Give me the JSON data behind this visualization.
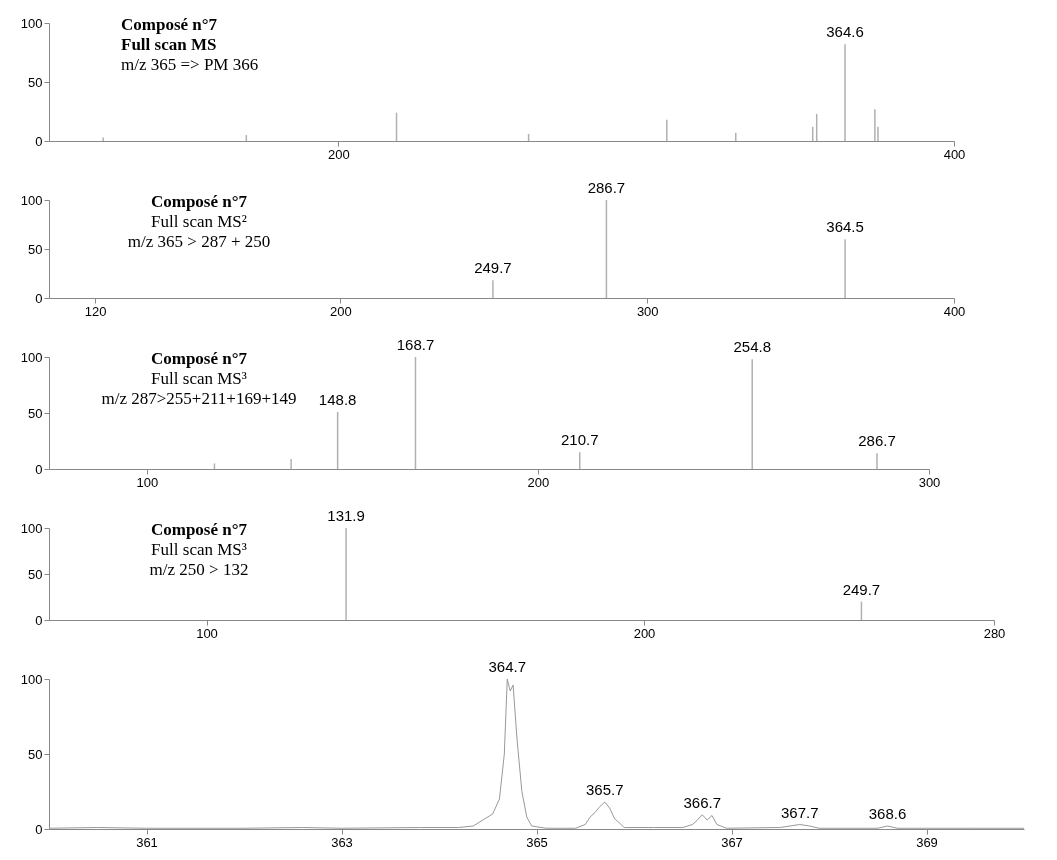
{
  "chart_data": [
    {
      "type": "bar",
      "title": "Composé n°7",
      "color": "#b0b0b0",
      "annotations": [
        "Full scan MS",
        "m/z 365 => PM 366",
        {
          "text": "364.6",
          "x": 364.6,
          "y": 82
        }
      ],
      "x": [
        123.6,
        170.1,
        218.9,
        261.8,
        306.7,
        329.1,
        354.1,
        355.4,
        364.6,
        374.3,
        375.3
      ],
      "values": [
        3,
        5,
        24,
        6,
        18,
        7,
        12,
        23,
        82,
        27,
        12
      ],
      "xlim": [
        106,
        400
      ],
      "xticks": [
        200,
        400
      ],
      "ylim": [
        0,
        100
      ],
      "yticks": [
        0,
        50,
        100
      ]
    },
    {
      "type": "bar",
      "title": "Composé n°7",
      "color": "#b0b0b0",
      "annotations": [
        "Full scan MS²",
        "m/z 365 > 287 + 250",
        {
          "text": "249.7",
          "x": 249.7,
          "y": 18
        },
        {
          "text": "286.7",
          "x": 286.7,
          "y": 100
        },
        {
          "text": "364.5",
          "x": 364.5,
          "y": 60
        }
      ],
      "x": [
        249.7,
        286.7,
        364.5
      ],
      "values": [
        18,
        100,
        60
      ],
      "xlim": [
        105,
        400
      ],
      "xticks": [
        120,
        200,
        300,
        400
      ],
      "ylim": [
        0,
        100
      ],
      "yticks": [
        0,
        50,
        100
      ]
    },
    {
      "type": "bar",
      "title": "Composé n°7",
      "color": "#b0b0b0",
      "annotations": [
        "Full scan MS³",
        "m/z 287>255+211+169+149",
        {
          "text": "148.8",
          "x": 148.8,
          "y": 51
        },
        {
          "text": "168.7",
          "x": 168.7,
          "y": 100
        },
        {
          "text": "210.7",
          "x": 210.7,
          "y": 15
        },
        {
          "text": "254.8",
          "x": 254.8,
          "y": 98
        },
        {
          "text": "286.7",
          "x": 286.7,
          "y": 14
        }
      ],
      "x": [
        117.3,
        136.9,
        148.8,
        168.7,
        210.7,
        254.8,
        286.7
      ],
      "values": [
        5,
        9,
        51,
        100,
        15,
        98,
        14
      ],
      "xlim": [
        75,
        300
      ],
      "xticks": [
        100,
        200,
        300
      ],
      "ylim": [
        0,
        100
      ],
      "yticks": [
        0,
        50,
        100
      ]
    },
    {
      "type": "bar",
      "title": "Composé n°7",
      "color": "#b0b0b0",
      "annotations": [
        "Full scan MS³",
        "m/z 250 > 132",
        {
          "text": "131.9",
          "x": 131.9,
          "y": 100
        },
        {
          "text": "249.7",
          "x": 249.7,
          "y": 20
        }
      ],
      "x": [
        131.9,
        249.7
      ],
      "values": [
        100,
        20
      ],
      "xlim": [
        64,
        280
      ],
      "xticks": [
        100,
        200,
        280
      ],
      "ylim": [
        0,
        100
      ],
      "yticks": [
        0,
        50,
        100
      ]
    },
    {
      "type": "line",
      "color": "#999999",
      "annotations": [
        {
          "text": "364.7",
          "x": 364.7,
          "y": 100
        },
        {
          "text": "365.7",
          "x": 365.7,
          "y": 18
        },
        {
          "text": "366.7",
          "x": 366.7,
          "y": 9.5
        },
        {
          "text": "367.7",
          "x": 367.7,
          "y": 3
        },
        {
          "text": "368.6",
          "x": 368.6,
          "y": 2
        }
      ],
      "x": [
        360.0,
        360.5,
        361.0,
        362.0,
        362.6,
        363.0,
        363.8,
        364.2,
        364.35,
        364.45,
        364.55,
        364.62,
        364.67,
        364.7,
        364.73,
        364.76,
        364.8,
        364.85,
        364.9,
        364.95,
        365.1,
        365.4,
        365.5,
        365.55,
        365.6,
        365.65,
        365.7,
        365.75,
        365.8,
        365.9,
        366.2,
        366.5,
        366.6,
        366.65,
        366.7,
        366.75,
        366.8,
        366.85,
        366.95,
        367.5,
        367.6,
        367.7,
        367.8,
        367.9,
        368.5,
        368.6,
        368.7,
        369.0,
        369.5,
        370.0
      ],
      "values": [
        0.5,
        1,
        0.5,
        0.5,
        1,
        0.5,
        1,
        1,
        2,
        6,
        10,
        20,
        50,
        100,
        92,
        96,
        60,
        25,
        8,
        2,
        0.5,
        0.5,
        3,
        8,
        11,
        15,
        18,
        14,
        7,
        1,
        1,
        1,
        3,
        6,
        9.5,
        6,
        9,
        3,
        0.5,
        1,
        2,
        3,
        2,
        0.5,
        0.5,
        2,
        0.5,
        0.5,
        0.5,
        0.5
      ],
      "xlim": [
        360,
        370
      ],
      "xticks": [
        361,
        363,
        365,
        367,
        369
      ],
      "ylim": [
        0,
        100
      ],
      "yticks": [
        0,
        50,
        100
      ]
    }
  ]
}
